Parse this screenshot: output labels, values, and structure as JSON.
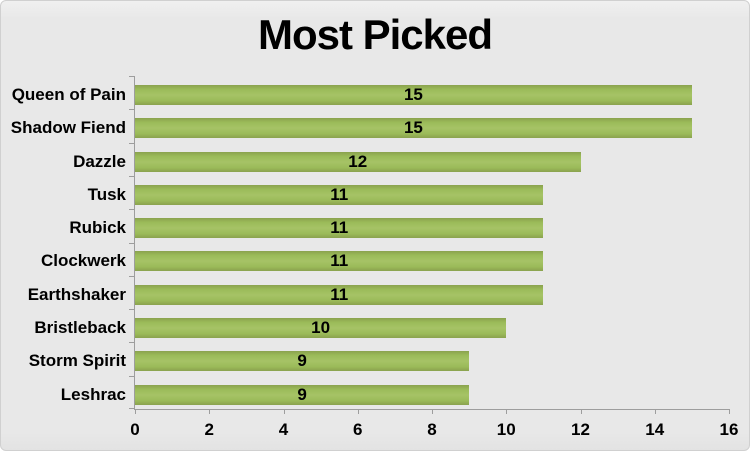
{
  "window": {
    "background": "#e8e8e8",
    "frame_border_color": "#d0d0d0"
  },
  "chart_data": {
    "type": "bar",
    "orientation": "horizontal",
    "title": "Most Picked",
    "categories": [
      "Queen of Pain",
      "Shadow Fiend",
      "Dazzle",
      "Tusk",
      "Rubick",
      "Clockwerk",
      "Earthshaker",
      "Bristleback",
      "Storm Spirit",
      "Leshrac"
    ],
    "values": [
      15,
      15,
      12,
      11,
      11,
      11,
      11,
      10,
      9,
      9
    ],
    "data_labels": [
      "15",
      "15",
      "12",
      "11",
      "11",
      "11",
      "11",
      "10",
      "9",
      "9"
    ],
    "data_labels_position": "center-of-bar",
    "xlabel": "",
    "ylabel": "",
    "xlim": [
      0,
      16
    ],
    "x_ticks": [
      0,
      2,
      4,
      6,
      8,
      10,
      12,
      14,
      16
    ],
    "grid": false,
    "legend": false,
    "bar_color": "#9bbb59",
    "bar_edge_color": "#8aa24e",
    "axis_color": "#9d9d9d",
    "text_color": "#000000"
  }
}
